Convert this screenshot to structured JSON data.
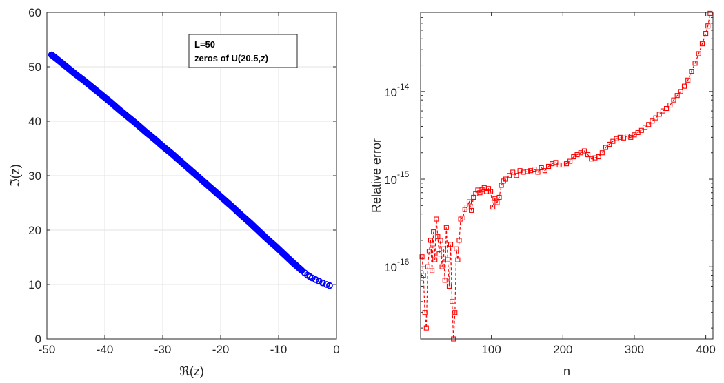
{
  "chart_data": [
    {
      "type": "scatter",
      "xlabel": "ℜ(z)",
      "ylabel": "ℑ(z)",
      "xlim": [
        -50,
        0
      ],
      "ylim": [
        0,
        60
      ],
      "xticks": [
        -50,
        -40,
        -30,
        -20,
        -10,
        0
      ],
      "yticks": [
        0,
        10,
        20,
        30,
        40,
        50,
        60
      ],
      "grid": true,
      "legend_position": "top-center",
      "legend_lines": [
        "L=50",
        "zeros of U(20.5,z)"
      ],
      "marker": "circle",
      "color": "#0000ff",
      "series": [
        {
          "x": [
            -49.2,
            -48.0,
            -46.5,
            -45.0,
            -43.5,
            -42.0,
            -40.5,
            -39.0,
            -37.5,
            -36.0,
            -34.5,
            -33.0,
            -31.5,
            -30.0,
            -28.5,
            -27.0,
            -25.5,
            -24.0,
            -22.5,
            -21.0,
            -19.5,
            -18.0,
            -16.5,
            -15.0,
            -13.5,
            -12.0,
            -10.5,
            -9.0,
            -7.5,
            -6.0,
            -5.0,
            -4.2,
            -3.6,
            -3.0,
            -2.4,
            -1.7,
            -1.2
          ],
          "y": [
            52.2,
            51.2,
            49.9,
            48.6,
            47.4,
            46.1,
            44.8,
            43.5,
            42.1,
            40.8,
            39.5,
            38.1,
            36.8,
            35.4,
            34.1,
            32.7,
            31.3,
            29.9,
            28.5,
            27.1,
            25.7,
            24.3,
            22.8,
            21.4,
            19.9,
            18.4,
            17.0,
            15.5,
            14.0,
            12.6,
            11.7,
            11.2,
            10.9,
            10.6,
            10.3,
            10.0,
            9.8
          ]
        }
      ]
    },
    {
      "type": "line",
      "xlabel": "n",
      "ylabel": "Relative error",
      "xlim": [
        1,
        410
      ],
      "ylim": [
        1.5e-17,
        8e-14
      ],
      "yscale": "log",
      "xticks": [
        100,
        200,
        300,
        400
      ],
      "yticks": [
        {
          "base": "10",
          "exp": "-16",
          "value": 1e-16
        },
        {
          "base": "10",
          "exp": "-15",
          "value": 1e-15
        },
        {
          "base": "10",
          "exp": "-14",
          "value": 1e-14
        }
      ],
      "grid": false,
      "marker": "square",
      "linestyle": "dashed",
      "color": "#ff0000",
      "series": [
        {
          "x": [
            3,
            5,
            7,
            9,
            11,
            13,
            15,
            17,
            19,
            21,
            23,
            25,
            27,
            29,
            31,
            33,
            35,
            37,
            39,
            41,
            43,
            45,
            47,
            49,
            51,
            53,
            55,
            57,
            60,
            63,
            66,
            69,
            72,
            75,
            78,
            81,
            84,
            87,
            90,
            93,
            96,
            99,
            102,
            105,
            108,
            111,
            114,
            117,
            120,
            125,
            130,
            135,
            140,
            145,
            150,
            155,
            160,
            165,
            170,
            175,
            180,
            185,
            190,
            195,
            200,
            205,
            210,
            215,
            220,
            225,
            230,
            235,
            240,
            245,
            250,
            255,
            260,
            265,
            270,
            275,
            280,
            285,
            290,
            295,
            300,
            305,
            310,
            315,
            320,
            325,
            330,
            335,
            340,
            345,
            350,
            355,
            360,
            365,
            370,
            375,
            380,
            385,
            390,
            395,
            400,
            403,
            406
          ],
          "y": [
            1.3e-16,
            8e-17,
            3e-17,
            2e-17,
            1e-16,
            1.5e-16,
            2e-16,
            9e-17,
            2.5e-16,
            1.2e-16,
            3.5e-16,
            2.2e-16,
            1.4e-16,
            2e-16,
            1e-16,
            1.6e-16,
            7e-17,
            2.8e-16,
            1.2e-16,
            6e-17,
            1.8e-16,
            4e-17,
            1.5e-17,
            3e-17,
            1.6e-16,
            1.2e-16,
            2e-16,
            3.5e-16,
            3.6e-16,
            4.5e-16,
            4.8e-16,
            5.5e-16,
            4.4e-16,
            6.2e-16,
            6.8e-16,
            7.5e-16,
            7e-16,
            7.6e-16,
            8e-16,
            7.2e-16,
            7.8e-16,
            7.2e-16,
            4.8e-16,
            6e-16,
            5.4e-16,
            6.2e-16,
            8.5e-16,
            9.5e-16,
            1e-15,
            1.1e-15,
            1.2e-15,
            1.1e-15,
            1.25e-15,
            1.2e-15,
            1.22e-15,
            1.25e-15,
            1.3e-15,
            1.2e-15,
            1.35e-15,
            1.25e-15,
            1.4e-15,
            1.5e-15,
            1.55e-15,
            1.45e-15,
            1.45e-15,
            1.5e-15,
            1.6e-15,
            1.8e-15,
            1.9e-15,
            2e-15,
            2.1e-15,
            1.9e-15,
            1.7e-15,
            1.75e-15,
            1.8e-15,
            2e-15,
            2.3e-15,
            2.5e-15,
            2.7e-15,
            2.9e-15,
            3e-15,
            2.95e-15,
            3.1e-15,
            3e-15,
            3.2e-15,
            3.4e-15,
            3.6e-15,
            3.9e-15,
            4.2e-15,
            4.6e-15,
            5e-15,
            5.5e-15,
            6e-15,
            6.4e-15,
            7e-15,
            8e-15,
            9e-15,
            1e-14,
            1.15e-14,
            1.35e-14,
            1.7e-14,
            2.1e-14,
            2.7e-14,
            3.5e-14,
            4.6e-14,
            5.6e-14,
            7.8e-14
          ]
        }
      ]
    }
  ]
}
